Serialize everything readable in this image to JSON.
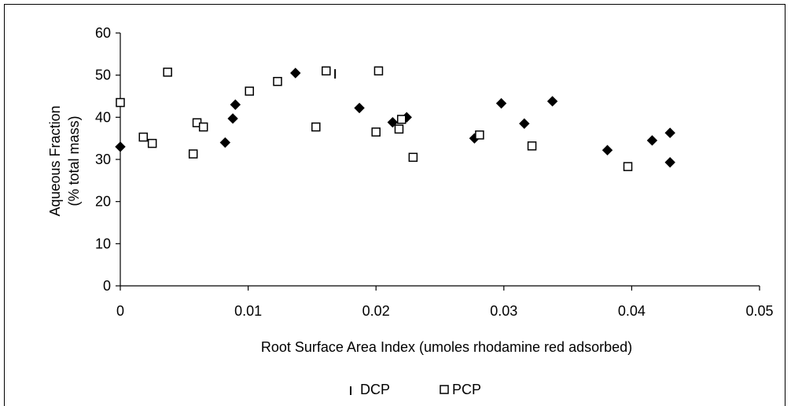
{
  "chart_data": {
    "type": "scatter",
    "title": "",
    "xlabel": "Root Surface Area Index (umoles rhodamine red adsorbed)",
    "ylabel_lines": [
      "Aqueous Fraction",
      "(% total mass)"
    ],
    "xlim": [
      0,
      0.05
    ],
    "ylim": [
      0,
      60
    ],
    "x_ticks": [
      0,
      0.01,
      0.02,
      0.03,
      0.04,
      0.05
    ],
    "x_tick_labels": [
      "0",
      "0.01",
      "0.02",
      "0.03",
      "0.04",
      "0.05"
    ],
    "y_ticks": [
      0,
      10,
      20,
      30,
      40,
      50,
      60
    ],
    "y_tick_labels": [
      "0",
      "10",
      "20",
      "30",
      "40",
      "50",
      "60"
    ],
    "grid": false,
    "legend_position": "bottom",
    "series": [
      {
        "name": "DCP",
        "marker": "diamond",
        "color": "#000000",
        "points": [
          [
            0.0,
            33.0
          ],
          [
            0.0082,
            34.0
          ],
          [
            0.0088,
            39.7
          ],
          [
            0.009,
            43.0
          ],
          [
            0.0137,
            50.5
          ],
          [
            0.0187,
            42.2
          ],
          [
            0.0213,
            38.8
          ],
          [
            0.0224,
            40.0
          ],
          [
            0.0277,
            35.0
          ],
          [
            0.0298,
            43.3
          ],
          [
            0.0316,
            38.5
          ],
          [
            0.0338,
            43.8
          ],
          [
            0.0381,
            32.2
          ],
          [
            0.0416,
            34.5
          ],
          [
            0.043,
            36.3
          ],
          [
            0.043,
            29.3
          ]
        ]
      },
      {
        "name": "PCP",
        "marker": "square",
        "color": "#000000",
        "points": [
          [
            0.0,
            43.5
          ],
          [
            0.0018,
            35.3
          ],
          [
            0.0025,
            33.8
          ],
          [
            0.0037,
            50.7
          ],
          [
            0.0057,
            31.3
          ],
          [
            0.006,
            38.7
          ],
          [
            0.0065,
            37.7
          ],
          [
            0.0101,
            46.2
          ],
          [
            0.0123,
            48.5
          ],
          [
            0.0153,
            37.7
          ],
          [
            0.0161,
            51.0
          ],
          [
            0.02,
            36.5
          ],
          [
            0.0202,
            51.0
          ],
          [
            0.0218,
            37.2
          ],
          [
            0.022,
            39.5
          ],
          [
            0.0229,
            30.5
          ],
          [
            0.0281,
            35.8
          ],
          [
            0.0322,
            33.2
          ],
          [
            0.0397,
            28.3
          ]
        ]
      }
    ],
    "stray_mark": {
      "series": "DCP",
      "marker": "bar",
      "point": [
        0.0168,
        50.3
      ]
    }
  }
}
